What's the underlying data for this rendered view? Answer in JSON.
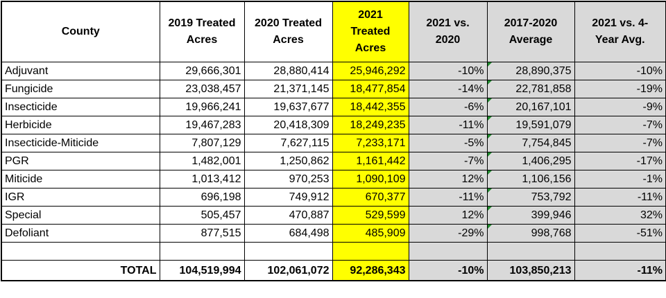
{
  "header": {
    "county": "County",
    "y2019": [
      "2019 Treated",
      "Acres"
    ],
    "y2020": [
      "2020 Treated",
      "Acres"
    ],
    "y2021": [
      "2021",
      "Treated",
      "Acres"
    ],
    "vs2020": [
      "2021 vs.",
      "2020"
    ],
    "avg": [
      "2017-2020",
      "Average"
    ],
    "vsavg": [
      "2021 vs. 4-",
      "Year Avg."
    ]
  },
  "rows": [
    {
      "name": "Adjuvant",
      "y2019": "29,666,301",
      "y2020": "28,880,414",
      "y2021": "25,946,292",
      "vs2020": "-10%",
      "avg": "28,890,375",
      "vsavg": "-10%"
    },
    {
      "name": "Fungicide",
      "y2019": "23,038,457",
      "y2020": "21,371,145",
      "y2021": "18,477,854",
      "vs2020": "-14%",
      "avg": "22,781,858",
      "vsavg": "-19%"
    },
    {
      "name": "Insecticide",
      "y2019": "19,966,241",
      "y2020": "19,637,677",
      "y2021": "18,442,355",
      "vs2020": "-6%",
      "avg": "20,167,101",
      "vsavg": "-9%"
    },
    {
      "name": "Herbicide",
      "y2019": "19,467,283",
      "y2020": "20,418,309",
      "y2021": "18,249,235",
      "vs2020": "-11%",
      "avg": "19,591,079",
      "vsavg": "-7%"
    },
    {
      "name": "Insecticide-Miticide",
      "y2019": "7,807,129",
      "y2020": "7,627,115",
      "y2021": "7,233,171",
      "vs2020": "-5%",
      "avg": "7,754,845",
      "vsavg": "-7%"
    },
    {
      "name": "PGR",
      "y2019": "1,482,001",
      "y2020": "1,250,862",
      "y2021": "1,161,442",
      "vs2020": "-7%",
      "avg": "1,406,295",
      "vsavg": "-17%"
    },
    {
      "name": "Miticide",
      "y2019": "1,013,412",
      "y2020": "970,253",
      "y2021": "1,090,109",
      "vs2020": "12%",
      "avg": "1,106,156",
      "vsavg": "-1%"
    },
    {
      "name": "IGR",
      "y2019": "696,198",
      "y2020": "749,912",
      "y2021": "670,377",
      "vs2020": "-11%",
      "avg": "753,792",
      "vsavg": "-11%"
    },
    {
      "name": "Special",
      "y2019": "505,457",
      "y2020": "470,887",
      "y2021": "529,599",
      "vs2020": "12%",
      "avg": "399,946",
      "vsavg": "32%"
    },
    {
      "name": "Defoliant",
      "y2019": "877,515",
      "y2020": "684,498",
      "y2021": "485,909",
      "vs2020": "-29%",
      "avg": "998,768",
      "vsavg": "-51%"
    }
  ],
  "total": {
    "name": "TOTAL",
    "y2019": "104,519,994",
    "y2020": "102,061,072",
    "y2021": "92,286,343",
    "vs2020": "-10%",
    "avg": "103,850,213",
    "vsavg": "-11%"
  },
  "colors": {
    "highlight": "#ffff00",
    "shade": "#d9d9d9",
    "marker": "#1e8a2c"
  }
}
